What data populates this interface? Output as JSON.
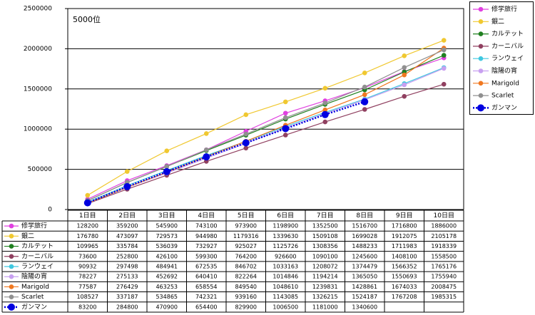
{
  "chart_data": {
    "type": "line",
    "annotation": "5000位",
    "categories": [
      "1日目",
      "2日目",
      "3日目",
      "4日目",
      "5日目",
      "6日目",
      "7日目",
      "8日目",
      "9日目",
      "10日目"
    ],
    "ylim": [
      0,
      2500000
    ],
    "yticks": [
      0,
      500000,
      1000000,
      1500000,
      2000000,
      2500000
    ],
    "grid": true,
    "legend": "right",
    "data_table": true,
    "series": [
      {
        "name": "修学旅行",
        "color": "#e040e0",
        "values": [
          128200,
          359200,
          545900,
          743100,
          973900,
          1198900,
          1352500,
          1516700,
          1716800,
          1886000
        ]
      },
      {
        "name": "銀二",
        "color": "#f0c830",
        "values": [
          176780,
          473097,
          729573,
          944980,
          1179316,
          1339630,
          1509108,
          1699028,
          1912075,
          2105178
        ]
      },
      {
        "name": "カルテット",
        "color": "#208020",
        "values": [
          109965,
          335784,
          536039,
          732927,
          925027,
          1125726,
          1308356,
          1488233,
          1711983,
          1918339
        ]
      },
      {
        "name": "カーニバル",
        "color": "#904060",
        "values": [
          73600,
          252800,
          426100,
          599300,
          764200,
          926600,
          1090100,
          1245600,
          1408100,
          1558500
        ]
      },
      {
        "name": "ランウェイ",
        "color": "#40c8e0",
        "values": [
          90932,
          297498,
          484941,
          672535,
          846702,
          1033163,
          1208072,
          1374479,
          1566352,
          1765176
        ]
      },
      {
        "name": "陰陽の宵",
        "color": "#c8a0f0",
        "values": [
          78227,
          275133,
          452692,
          640410,
          822264,
          1014846,
          1194214,
          1365050,
          1550693,
          1755940
        ]
      },
      {
        "name": "Marigold",
        "color": "#f07820",
        "values": [
          77587,
          276429,
          463253,
          658554,
          849540,
          1048610,
          1239831,
          1428861,
          1674033,
          2008475
        ]
      },
      {
        "name": "Scarlet",
        "color": "#909090",
        "values": [
          108527,
          337187,
          534865,
          742321,
          939160,
          1143085,
          1326215,
          1524187,
          1767208,
          1985315
        ]
      },
      {
        "name": "ガンマン",
        "color": "#0000e0",
        "line_style": "dotted",
        "values": [
          83200,
          284800,
          470900,
          654400,
          829900,
          1006500,
          1181000,
          1340600,
          null,
          null
        ]
      }
    ]
  }
}
